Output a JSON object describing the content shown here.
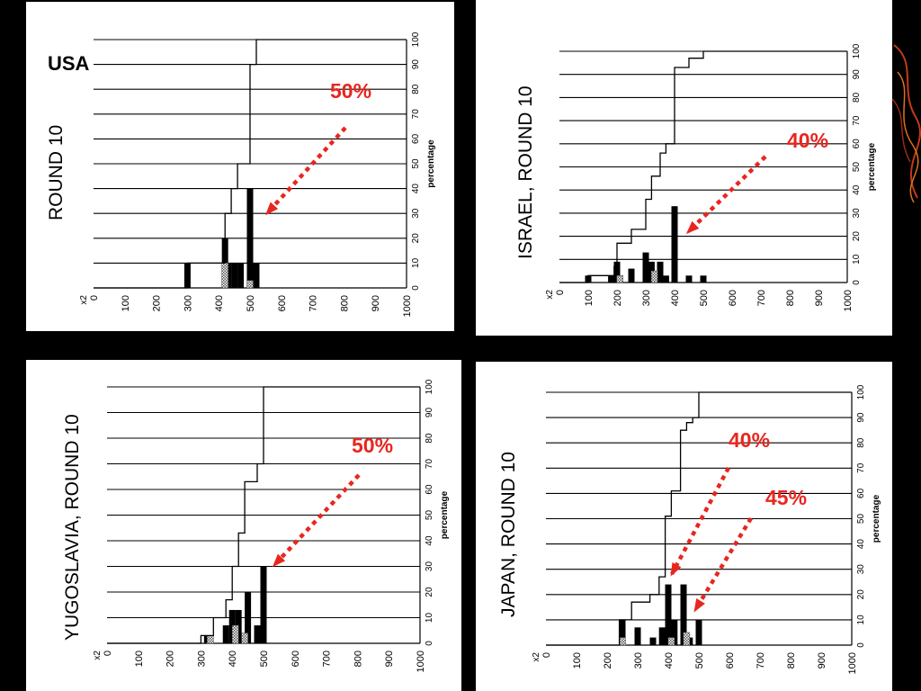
{
  "chart_data": [
    {
      "id": "usa",
      "type": "bar",
      "title": "ROUND 10",
      "corner_label": "USA",
      "annotations": [
        "50%"
      ],
      "ylabel": "percentage",
      "xlim": [
        0,
        1000
      ],
      "ylim": [
        0,
        100
      ],
      "x_ticks": [
        "0",
        "100",
        "200",
        "300",
        "400",
        "500",
        "600",
        "700",
        "800",
        "900",
        "1000"
      ],
      "x_tick_prefix": "x2",
      "y_ticks": [
        "0",
        "10",
        "20",
        "30",
        "40",
        "50",
        "60",
        "70",
        "80",
        "90",
        "100"
      ],
      "bars": [
        {
          "x": 300,
          "value": 10
        },
        {
          "x": 420,
          "value": 20
        },
        {
          "x": 430,
          "value": 10
        },
        {
          "x": 450,
          "value": 10
        },
        {
          "x": 470,
          "value": 10
        },
        {
          "x": 500,
          "value": 40
        },
        {
          "x": 520,
          "value": 10
        }
      ],
      "hatched_bars": [
        {
          "x": 420,
          "value": 10
        },
        {
          "x": 500,
          "value": 3
        }
      ],
      "cumulative": [
        [
          0,
          0
        ],
        [
          300,
          0
        ],
        [
          300,
          10
        ],
        [
          420,
          10
        ],
        [
          420,
          30
        ],
        [
          440,
          30
        ],
        [
          440,
          40
        ],
        [
          460,
          40
        ],
        [
          460,
          50
        ],
        [
          500,
          50
        ],
        [
          500,
          90
        ],
        [
          520,
          90
        ],
        [
          520,
          100
        ],
        [
          1000,
          100
        ]
      ]
    },
    {
      "id": "israel",
      "type": "bar",
      "title": "ISRAEL, ROUND 10",
      "corner_label": "",
      "annotations": [
        "40%"
      ],
      "ylabel": "percentage",
      "xlim": [
        0,
        1000
      ],
      "ylim": [
        0,
        100
      ],
      "x_ticks": [
        "0",
        "100",
        "200",
        "300",
        "400",
        "500",
        "600",
        "700",
        "800",
        "900",
        "1000"
      ],
      "x_tick_prefix": "x2",
      "y_ticks": [
        "0",
        "10",
        "20",
        "30",
        "40",
        "50",
        "60",
        "70",
        "80",
        "90",
        "100"
      ],
      "bars": [
        {
          "x": 100,
          "value": 3
        },
        {
          "x": 180,
          "value": 3
        },
        {
          "x": 200,
          "value": 9
        },
        {
          "x": 250,
          "value": 6
        },
        {
          "x": 300,
          "value": 13
        },
        {
          "x": 320,
          "value": 9
        },
        {
          "x": 350,
          "value": 9
        },
        {
          "x": 370,
          "value": 3
        },
        {
          "x": 400,
          "value": 33
        },
        {
          "x": 450,
          "value": 3
        },
        {
          "x": 500,
          "value": 3
        }
      ],
      "hatched_bars": [
        {
          "x": 210,
          "value": 3
        },
        {
          "x": 330,
          "value": 5
        }
      ],
      "cumulative": [
        [
          0,
          0
        ],
        [
          100,
          0
        ],
        [
          100,
          3
        ],
        [
          190,
          3
        ],
        [
          190,
          7
        ],
        [
          200,
          7
        ],
        [
          200,
          17
        ],
        [
          250,
          17
        ],
        [
          250,
          23
        ],
        [
          300,
          23
        ],
        [
          300,
          36
        ],
        [
          320,
          36
        ],
        [
          320,
          46
        ],
        [
          350,
          46
        ],
        [
          350,
          56
        ],
        [
          370,
          56
        ],
        [
          370,
          60
        ],
        [
          400,
          60
        ],
        [
          400,
          93
        ],
        [
          450,
          93
        ],
        [
          450,
          97
        ],
        [
          500,
          97
        ],
        [
          500,
          100
        ],
        [
          1000,
          100
        ]
      ]
    },
    {
      "id": "yugoslavia",
      "type": "bar",
      "title": "YUGOSLAVIA, ROUND 10",
      "corner_label": "",
      "annotations": [
        "50%"
      ],
      "ylabel": "percentage",
      "xlim": [
        0,
        1000
      ],
      "ylim": [
        0,
        100
      ],
      "x_ticks": [
        "0",
        "100",
        "200",
        "300",
        "400",
        "500",
        "600",
        "700",
        "800",
        "900",
        "1000"
      ],
      "x_tick_prefix": "x2",
      "y_ticks": [
        "0",
        "10",
        "20",
        "30",
        "40",
        "50",
        "60",
        "70",
        "80",
        "90",
        "100"
      ],
      "bars": [
        {
          "x": 320,
          "value": 3
        },
        {
          "x": 380,
          "value": 7
        },
        {
          "x": 400,
          "value": 13
        },
        {
          "x": 420,
          "value": 13
        },
        {
          "x": 450,
          "value": 20
        },
        {
          "x": 480,
          "value": 7
        },
        {
          "x": 500,
          "value": 30
        }
      ],
      "hatched_bars": [
        {
          "x": 330,
          "value": 3
        },
        {
          "x": 410,
          "value": 7
        },
        {
          "x": 440,
          "value": 4
        }
      ],
      "cumulative": [
        [
          0,
          0
        ],
        [
          300,
          0
        ],
        [
          300,
          3
        ],
        [
          340,
          3
        ],
        [
          340,
          10
        ],
        [
          380,
          10
        ],
        [
          380,
          17
        ],
        [
          400,
          17
        ],
        [
          400,
          30
        ],
        [
          420,
          30
        ],
        [
          420,
          43
        ],
        [
          440,
          43
        ],
        [
          440,
          63
        ],
        [
          480,
          63
        ],
        [
          480,
          70
        ],
        [
          500,
          70
        ],
        [
          500,
          100
        ],
        [
          1000,
          100
        ]
      ]
    },
    {
      "id": "japan",
      "type": "bar",
      "title": "JAPAN, ROUND 10",
      "corner_label": "",
      "annotations": [
        "40%",
        "45%"
      ],
      "ylabel": "percentage",
      "xlim": [
        0,
        1000
      ],
      "ylim": [
        0,
        100
      ],
      "x_ticks": [
        "0",
        "100",
        "200",
        "300",
        "400",
        "500",
        "600",
        "700",
        "800",
        "900",
        "1000"
      ],
      "x_tick_prefix": "x2",
      "y_ticks": [
        "0",
        "10",
        "20",
        "30",
        "40",
        "50",
        "60",
        "70",
        "80",
        "90",
        "100"
      ],
      "bars": [
        {
          "x": 250,
          "value": 10
        },
        {
          "x": 300,
          "value": 7
        },
        {
          "x": 350,
          "value": 3
        },
        {
          "x": 380,
          "value": 7
        },
        {
          "x": 400,
          "value": 24
        },
        {
          "x": 420,
          "value": 10
        },
        {
          "x": 450,
          "value": 24
        },
        {
          "x": 470,
          "value": 3
        },
        {
          "x": 500,
          "value": 10
        }
      ],
      "hatched_bars": [
        {
          "x": 250,
          "value": 3
        },
        {
          "x": 410,
          "value": 3
        },
        {
          "x": 460,
          "value": 5
        }
      ],
      "cumulative": [
        [
          0,
          0
        ],
        [
          240,
          0
        ],
        [
          240,
          10
        ],
        [
          280,
          10
        ],
        [
          280,
          17
        ],
        [
          340,
          17
        ],
        [
          340,
          20
        ],
        [
          370,
          20
        ],
        [
          370,
          27
        ],
        [
          390,
          27
        ],
        [
          390,
          51
        ],
        [
          410,
          51
        ],
        [
          410,
          61
        ],
        [
          440,
          61
        ],
        [
          440,
          85
        ],
        [
          460,
          85
        ],
        [
          460,
          88
        ],
        [
          480,
          88
        ],
        [
          480,
          90
        ],
        [
          500,
          90
        ],
        [
          500,
          100
        ],
        [
          1000,
          100
        ]
      ]
    }
  ]
}
